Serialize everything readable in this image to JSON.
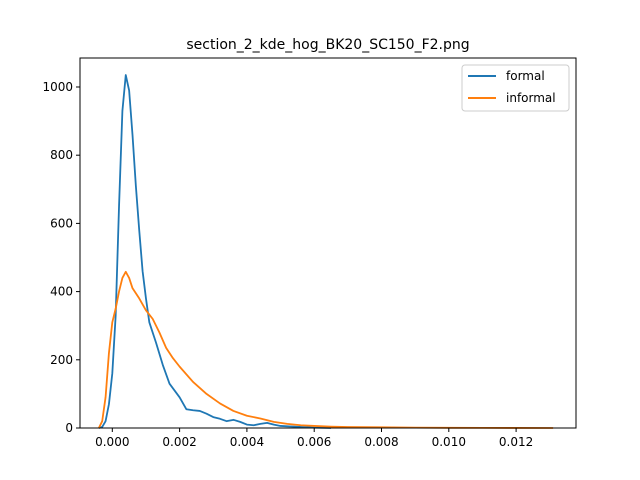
{
  "chart_data": {
    "type": "line",
    "title": "section_2_kde_hog_BK20_SC150_F2.png",
    "xlabel": "",
    "ylabel": "",
    "xlim": [
      -0.00096,
      0.01378
    ],
    "ylim": [
      0,
      1085
    ],
    "x_ticks": [
      0.0,
      0.002,
      0.004,
      0.006,
      0.008,
      0.01,
      0.012
    ],
    "x_tick_labels": [
      "0.000",
      "0.002",
      "0.004",
      "0.006",
      "0.008",
      "0.010",
      "0.012"
    ],
    "y_ticks": [
      0,
      200,
      400,
      600,
      800,
      1000
    ],
    "y_tick_labels": [
      "0",
      "200",
      "400",
      "600",
      "800",
      "1000"
    ],
    "grid": false,
    "legend_position": "top-right",
    "series": [
      {
        "name": "formal",
        "color": "#1f77b4",
        "points": [
          [
            -0.0004,
            0
          ],
          [
            -0.0003,
            3
          ],
          [
            -0.0002,
            20
          ],
          [
            -0.0001,
            70
          ],
          [
            0.0,
            160
          ],
          [
            0.0001,
            330
          ],
          [
            0.0002,
            650
          ],
          [
            0.0003,
            930
          ],
          [
            0.0004,
            1035
          ],
          [
            0.0005,
            990
          ],
          [
            0.0006,
            860
          ],
          [
            0.0007,
            710
          ],
          [
            0.0008,
            580
          ],
          [
            0.0009,
            460
          ],
          [
            0.001,
            380
          ],
          [
            0.0011,
            310
          ],
          [
            0.0013,
            250
          ],
          [
            0.0015,
            185
          ],
          [
            0.0017,
            130
          ],
          [
            0.002,
            90
          ],
          [
            0.0022,
            55
          ],
          [
            0.0024,
            52
          ],
          [
            0.0026,
            50
          ],
          [
            0.0028,
            42
          ],
          [
            0.003,
            32
          ],
          [
            0.0032,
            27
          ],
          [
            0.0034,
            20
          ],
          [
            0.0036,
            24
          ],
          [
            0.0038,
            18
          ],
          [
            0.004,
            10
          ],
          [
            0.0042,
            8
          ],
          [
            0.0044,
            12
          ],
          [
            0.0046,
            15
          ],
          [
            0.0048,
            10
          ],
          [
            0.005,
            6
          ],
          [
            0.0054,
            4
          ],
          [
            0.0058,
            2
          ],
          [
            0.006,
            1
          ],
          [
            0.0065,
            0
          ]
        ]
      },
      {
        "name": "informal",
        "color": "#ff7f0e",
        "points": [
          [
            -0.0004,
            0
          ],
          [
            -0.0003,
            20
          ],
          [
            -0.0002,
            90
          ],
          [
            -0.0001,
            220
          ],
          [
            0.0,
            310
          ],
          [
            0.0001,
            350
          ],
          [
            0.0002,
            400
          ],
          [
            0.0003,
            440
          ],
          [
            0.0004,
            458
          ],
          [
            0.0005,
            440
          ],
          [
            0.0006,
            410
          ],
          [
            0.0008,
            380
          ],
          [
            0.001,
            345
          ],
          [
            0.0012,
            320
          ],
          [
            0.0014,
            280
          ],
          [
            0.0016,
            235
          ],
          [
            0.0018,
            205
          ],
          [
            0.002,
            180
          ],
          [
            0.0024,
            135
          ],
          [
            0.0028,
            100
          ],
          [
            0.0032,
            72
          ],
          [
            0.0036,
            50
          ],
          [
            0.004,
            36
          ],
          [
            0.0044,
            28
          ],
          [
            0.0048,
            18
          ],
          [
            0.0052,
            12
          ],
          [
            0.0056,
            8
          ],
          [
            0.006,
            6
          ],
          [
            0.0065,
            4
          ],
          [
            0.007,
            3
          ],
          [
            0.008,
            2
          ],
          [
            0.009,
            1
          ],
          [
            0.01,
            0.5
          ],
          [
            0.011,
            0.3
          ],
          [
            0.012,
            0.2
          ],
          [
            0.0131,
            0
          ]
        ]
      }
    ]
  }
}
